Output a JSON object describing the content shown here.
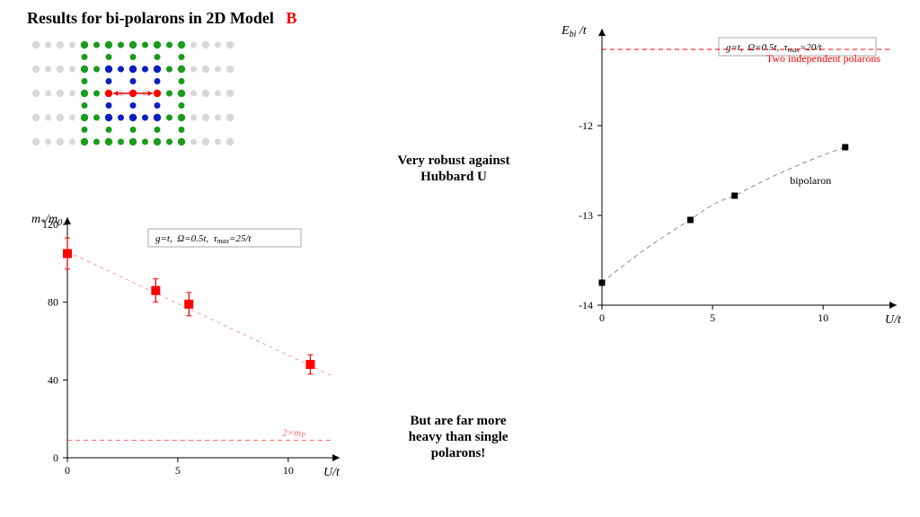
{
  "title_main": "Results for bi-polarons in 2D Model",
  "title_letter": "B",
  "annot_top": "Very robust against\nHubbard U",
  "annot_bottom": "But are far more\nheavy than single\npolarons!",
  "colors": {
    "red": "#ff0000",
    "green": "#1a9b1a",
    "blue": "#0a1ec0",
    "light": "#d8d8d8",
    "axis": "#000000",
    "grid": "#000000",
    "box_border": "#aaaaaa",
    "dash_red": "#ff6666"
  },
  "lattice": {
    "cols": 9,
    "rows": 5,
    "spacing": 27,
    "dot_r": 4.2,
    "small_r": 3.5,
    "bg_dot": "#d8d8d8",
    "center_row": 2,
    "red_cols": [
      3,
      4,
      5
    ],
    "arrow_color": "#ff0000",
    "elabel": "e"
  },
  "mass_chart": {
    "type": "scatter",
    "ylabel": "m*/m0",
    "xlabel": "U/t",
    "legend": "g=t,  Ω=0.5t,  τmax=25/t",
    "xlim": [
      0,
      12
    ],
    "ylim": [
      0,
      120
    ],
    "xticks": [
      0,
      5,
      10
    ],
    "yticks": [
      0,
      40,
      80,
      120
    ],
    "point_color": "#ff0000",
    "points": [
      {
        "x": 0,
        "y": 105,
        "err": 8
      },
      {
        "x": 4,
        "y": 86,
        "err": 6
      },
      {
        "x": 5.5,
        "y": 79,
        "err": 6
      },
      {
        "x": 11,
        "y": 48,
        "err": 5
      }
    ],
    "guide_line_color": "#ff9999",
    "guide_line": {
      "x0": 0,
      "y0": 106,
      "x1": 12,
      "y1": 42
    },
    "ref_line_label": "2×mP",
    "ref_line_y": 9,
    "ref_line_color": "#ff6666"
  },
  "energy_chart": {
    "type": "scatter",
    "ylabel": "Ebi /t",
    "xlabel": "U/t",
    "legend": "g=t,  Ω=0.5t,  τmax=20/t",
    "xlim": [
      0,
      13
    ],
    "ylim": [
      -14,
      -11
    ],
    "xticks": [
      0,
      5,
      10
    ],
    "yticks": [
      -12,
      -13,
      -14
    ],
    "point_color": "#000000",
    "points": [
      {
        "x": 0,
        "y": -13.75
      },
      {
        "x": 4,
        "y": -13.05
      },
      {
        "x": 6,
        "y": -12.78
      },
      {
        "x": 11,
        "y": -12.24
      }
    ],
    "curve_color": "#888888",
    "top_ref_y": -11.15,
    "top_ref_label": "Two independent polarons",
    "top_ref_color": "#ff0000",
    "point_label": "bipolaron"
  }
}
